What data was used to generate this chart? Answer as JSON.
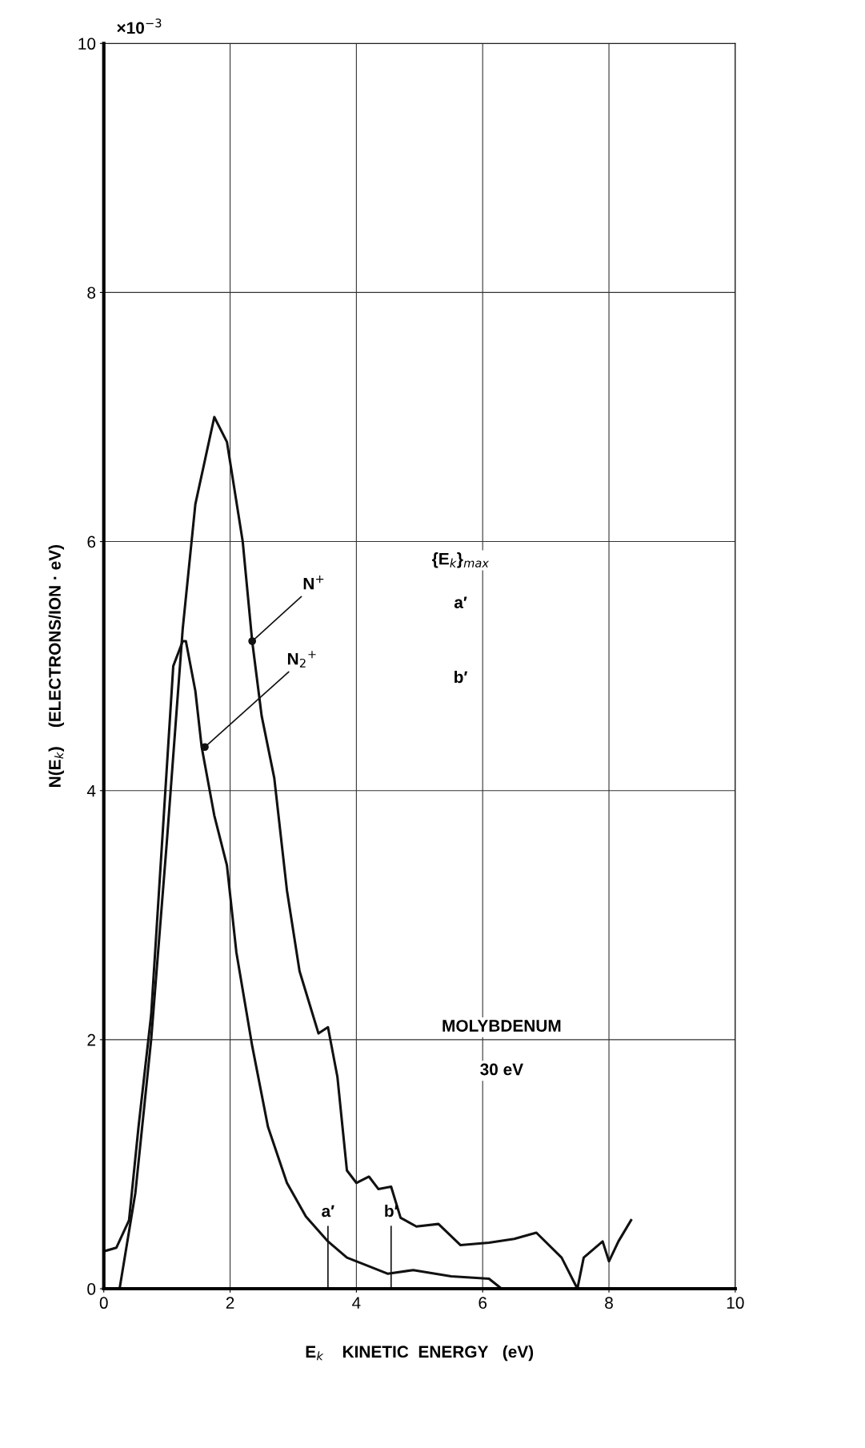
{
  "chart_data": {
    "type": "line",
    "xlabel": "E$_{k}$    KINETIC  ENERGY   (eV)",
    "ylabel": "N(E$_{k}$)    (ELECTRONS/ION · eV)",
    "xlim": [
      0,
      10
    ],
    "ylim": [
      0,
      10
    ],
    "xticks": [
      0,
      2,
      4,
      6,
      8,
      10
    ],
    "yticks": [
      0,
      2,
      4,
      6,
      8,
      10
    ],
    "grid": true,
    "line_style": "solid",
    "series": [
      {
        "color": "#111111",
        "x": [
          0.25,
          0.5,
          0.75,
          1.0,
          1.25,
          1.45,
          1.75,
          1.95,
          2.2,
          2.35,
          2.5,
          2.7,
          2.9,
          3.1,
          3.4,
          3.55,
          3.7,
          3.85,
          4.0,
          4.2,
          4.35,
          4.55,
          4.7,
          4.95,
          5.3,
          5.65,
          6.1,
          6.5,
          6.85,
          7.25,
          7.5,
          7.6,
          7.9,
          8.0,
          8.15,
          8.35
        ],
        "values": [
          0,
          0.77,
          2.0,
          3.6,
          5.3,
          6.3,
          7.0,
          6.8,
          6.0,
          5.2,
          4.6,
          4.1,
          3.2,
          2.55,
          2.05,
          2.1,
          1.7,
          0.95,
          0.85,
          0.9,
          0.8,
          0.82,
          0.57,
          0.5,
          0.52,
          0.35,
          0.37,
          0.4,
          0.45,
          0.25,
          0.0,
          0.25,
          0.38,
          0.22,
          0.38,
          0.55
        ]
      },
      {
        "color": "#111111",
        "x": [
          0.0,
          0.2,
          0.4,
          0.55,
          0.75,
          0.95,
          1.1,
          1.25,
          1.3,
          1.45,
          1.55,
          1.75,
          1.95,
          2.1,
          2.35,
          2.6,
          2.9,
          3.2,
          3.55,
          3.85,
          4.1,
          4.5,
          4.9,
          5.5,
          6.1,
          6.3
        ],
        "values": [
          0.3,
          0.33,
          0.55,
          1.3,
          2.2,
          3.8,
          5.0,
          5.2,
          5.2,
          4.8,
          4.35,
          3.8,
          3.4,
          2.7,
          1.95,
          1.3,
          0.85,
          0.58,
          0.38,
          0.25,
          0.2,
          0.12,
          0.15,
          0.1,
          0.08,
          0.0
        ]
      }
    ],
    "ref_lines": [
      {
        "axis": "x",
        "value": 3.55,
        "label": "a′"
      },
      {
        "axis": "x",
        "value": 4.55,
        "label": "b′"
      }
    ],
    "annotations": [
      "×10$^{−3}$",
      {
        "text": "N$^{+}$",
        "x": 2.35,
        "y": 5.2
      },
      {
        "text": "N$_{2}$$^{+}$",
        "x": 1.6,
        "y": 4.35
      },
      "{E$_{k}$}$_{max}$",
      "a′",
      "b′",
      "MOLYBDENUM",
      "30 eV"
    ]
  }
}
